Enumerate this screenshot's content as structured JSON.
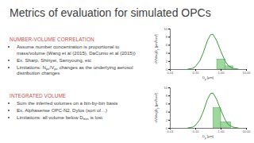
{
  "slide": {
    "title": "Metrics of evaluation for simulated OPCs",
    "sections": [
      {
        "heading": "NUMBER-VOLUME CORRELATION",
        "bullets": [
          [
            {
              "text": "Assume number concentration is proportional to mass/volume (Wang et al (2015), DaCunto et al (2015))"
            }
          ],
          [
            {
              "text": "Ex. Sharp, Shinyei, Samyoung, etc"
            }
          ],
          [
            {
              "text": "Limitations: N"
            },
            {
              "text": "pc",
              "sub": true
            },
            {
              "text": "/V"
            },
            {
              "text": "pc",
              "sub": true
            },
            {
              "text": " changes as the underlying aerosol distribution changes"
            }
          ]
        ]
      },
      {
        "heading": "INTEGRATED VOLUME",
        "bullets": [
          [
            {
              "text": "Sum the inferred volumes on a bin-by-bin basis"
            }
          ],
          [
            {
              "text": "Ex. Alphasense OPC-N2, Dylos (sort of…)"
            }
          ],
          [
            {
              "text": "Limitations: all volume below D"
            },
            {
              "text": "min",
              "sub": true
            },
            {
              "text": " is lost"
            }
          ]
        ]
      }
    ]
  },
  "chart_data": [
    {
      "type": "line",
      "log": "x",
      "x_label": [
        {
          "text": "D"
        },
        {
          "text": "p",
          "sub": true
        },
        {
          "text": " [μm]"
        }
      ],
      "y_label": [
        {
          "text": "dV/dlogD"
        },
        {
          "text": "p",
          "sub": true
        },
        {
          "text": " [μm³/cm³]"
        }
      ],
      "x": [
        0.05,
        0.08,
        0.1,
        0.15,
        0.2,
        0.3,
        0.4,
        0.5,
        0.7,
        1,
        1.5,
        2,
        3,
        5
      ],
      "series": [
        {
          "color": "#3a9a3a",
          "values": [
            0,
            0.2,
            0.6,
            2,
            3.8,
            7,
            8.5,
            8.6,
            7,
            4.5,
            2,
            0.8,
            0.2,
            0
          ]
        }
      ],
      "bins": [
        0.7,
        1.5,
        3
      ],
      "counts": [
        2.5,
        0.8
      ],
      "bin_color": "#9fd89f",
      "xlim": [
        0.01,
        10
      ],
      "xticks": [
        0.01,
        {
          "value": 0.1,
          "label": "0.10"
        },
        {
          "value": 1,
          "label": "1.00"
        },
        {
          "value": 10,
          "label": "10.00"
        }
      ],
      "ylim": [
        0,
        10
      ],
      "yticks": [
        0,
        2,
        4,
        6,
        8,
        10
      ]
    },
    {
      "type": "line",
      "log": "x",
      "x_label": [
        {
          "text": "D"
        },
        {
          "text": "p",
          "sub": true
        },
        {
          "text": " [μm]"
        }
      ],
      "y_label": [
        {
          "text": "dV/dlogD"
        },
        {
          "text": "p",
          "sub": true
        },
        {
          "text": " [μm³/cm³]"
        }
      ],
      "x": [
        0.05,
        0.08,
        0.1,
        0.15,
        0.2,
        0.3,
        0.4,
        0.5,
        0.7,
        1,
        1.5,
        2,
        3,
        5
      ],
      "series": [
        {
          "color": "#3a9a3a",
          "values": [
            0,
            0.2,
            0.6,
            2,
            3.8,
            7,
            8.5,
            8.6,
            7,
            4.5,
            2,
            0.8,
            0.2,
            0
          ]
        }
      ],
      "bins": [
        0.5,
        1,
        2.5
      ],
      "counts": [
        5,
        1.5
      ],
      "bin_color": "#9fd89f",
      "xlim": [
        0.01,
        10
      ],
      "xticks": [
        0.01,
        {
          "value": 0.1,
          "label": "0.10"
        },
        {
          "value": 1,
          "label": "1.00"
        },
        {
          "value": 10,
          "label": "10.00"
        }
      ],
      "ylim": [
        0,
        10
      ],
      "yticks": [
        0,
        2,
        4,
        6,
        8,
        10
      ]
    }
  ]
}
